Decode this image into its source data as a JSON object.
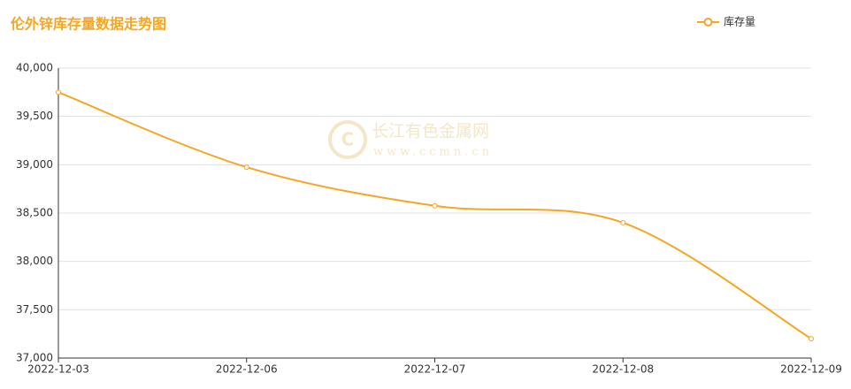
{
  "chart_data": {
    "type": "line",
    "title": "伦外锌库存量数据走势图",
    "categories": [
      "2022-12-03",
      "2022-12-06",
      "2022-12-07",
      "2022-12-08",
      "2022-12-09"
    ],
    "series": [
      {
        "name": "库存量",
        "color": "#f5a623",
        "values": [
          39750,
          38975,
          38575,
          38400,
          37200
        ]
      }
    ],
    "ylim": [
      37000,
      40000
    ],
    "yticks": [
      {
        "value": 37000,
        "label": "37,000"
      },
      {
        "value": 37500,
        "label": "37,500"
      },
      {
        "value": 38000,
        "label": "38,000"
      },
      {
        "value": 38500,
        "label": "38,500"
      },
      {
        "value": 39000,
        "label": "39,000"
      },
      {
        "value": 39500,
        "label": "39,500"
      },
      {
        "value": 40000,
        "label": "40,000"
      }
    ],
    "grid": true,
    "smooth": true,
    "legend": "top-right",
    "watermark": [
      "长江有色金属网",
      "www.ccmn.cn"
    ]
  }
}
